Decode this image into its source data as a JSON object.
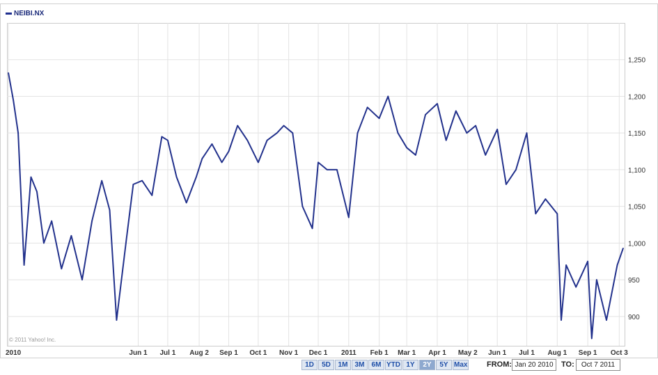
{
  "legend": {
    "symbol": "NEIBI.NX"
  },
  "copyright": "© 2011 Yahoo! Inc.",
  "controls": {
    "ranges": [
      "1D",
      "5D",
      "1M",
      "3M",
      "6M",
      "YTD",
      "1Y",
      "2Y",
      "5Y",
      "Max"
    ],
    "selected": "2Y",
    "from_label": "FROM:",
    "from_value": "Jan 20 2010",
    "to_label": "TO:",
    "to_value": "Oct 7 2011"
  },
  "colors": {
    "line": "#22318c",
    "grid": "#e3e3e3",
    "button": "#dfe7f2"
  },
  "chart_data": {
    "type": "line",
    "series": [
      {
        "name": "NEIBI.NX",
        "x": [
          "2010-01-20",
          "2010-01-25",
          "2010-01-30",
          "2010-02-05",
          "2010-02-12",
          "2010-02-18",
          "2010-02-25",
          "2010-03-05",
          "2010-03-15",
          "2010-03-25",
          "2010-04-05",
          "2010-04-15",
          "2010-04-25",
          "2010-05-03",
          "2010-05-10",
          "2010-05-20",
          "2010-05-27",
          "2010-06-05",
          "2010-06-15",
          "2010-06-25",
          "2010-07-01",
          "2010-07-10",
          "2010-07-20",
          "2010-07-30",
          "2010-08-05",
          "2010-08-15",
          "2010-08-25",
          "2010-09-01",
          "2010-09-10",
          "2010-09-20",
          "2010-10-01",
          "2010-10-10",
          "2010-10-20",
          "2010-10-27",
          "2010-11-05",
          "2010-11-15",
          "2010-11-25",
          "2010-12-01",
          "2010-12-10",
          "2010-12-20",
          "2011-01-01",
          "2011-01-10",
          "2011-01-20",
          "2011-02-01",
          "2011-02-10",
          "2011-02-20",
          "2011-03-01",
          "2011-03-10",
          "2011-03-20",
          "2011-04-01",
          "2011-04-10",
          "2011-04-20",
          "2011-05-01",
          "2011-05-10",
          "2011-05-20",
          "2011-06-01",
          "2011-06-10",
          "2011-06-20",
          "2011-07-01",
          "2011-07-10",
          "2011-07-20",
          "2011-08-01",
          "2011-08-05",
          "2011-08-10",
          "2011-08-20",
          "2011-09-01",
          "2011-09-05",
          "2011-09-10",
          "2011-09-20",
          "2011-10-01",
          "2011-10-07"
        ],
        "values": [
          1232,
          1195,
          1150,
          970,
          1090,
          1070,
          1000,
          1030,
          965,
          1010,
          950,
          1030,
          1085,
          1045,
          895,
          1005,
          1080,
          1085,
          1065,
          1145,
          1140,
          1090,
          1055,
          1090,
          1115,
          1135,
          1110,
          1125,
          1160,
          1140,
          1110,
          1140,
          1150,
          1160,
          1150,
          1050,
          1020,
          1110,
          1100,
          1100,
          1035,
          1150,
          1185,
          1170,
          1200,
          1150,
          1130,
          1120,
          1175,
          1190,
          1140,
          1180,
          1150,
          1160,
          1120,
          1155,
          1080,
          1100,
          1150,
          1040,
          1060,
          1040,
          895,
          970,
          940,
          975,
          870,
          950,
          895,
          970,
          993
        ]
      }
    ],
    "ylim": [
      860,
      1300
    ],
    "yticks": [
      900,
      950,
      1000,
      1050,
      1100,
      1150,
      1200,
      1250
    ],
    "ytick_labels": [
      "900",
      "950",
      "1,000",
      "1,050",
      "1,100",
      "1,150",
      "1,200",
      "1,250"
    ],
    "xticks": [
      {
        "date": "2010-01-20",
        "label": "2010"
      },
      {
        "date": "2010-06-01",
        "label": "Jun 1"
      },
      {
        "date": "2010-07-01",
        "label": "Jul 1"
      },
      {
        "date": "2010-08-02",
        "label": "Aug 2"
      },
      {
        "date": "2010-09-01",
        "label": "Sep 1"
      },
      {
        "date": "2010-10-01",
        "label": "Oct 1"
      },
      {
        "date": "2010-11-01",
        "label": "Nov 1"
      },
      {
        "date": "2010-12-01",
        "label": "Dec 1"
      },
      {
        "date": "2011-01-01",
        "label": "2011"
      },
      {
        "date": "2011-02-01",
        "label": "Feb 1"
      },
      {
        "date": "2011-03-01",
        "label": "Mar 1"
      },
      {
        "date": "2011-04-01",
        "label": "Apr 1"
      },
      {
        "date": "2011-05-02",
        "label": "May 2"
      },
      {
        "date": "2011-06-01",
        "label": "Jun 1"
      },
      {
        "date": "2011-07-01",
        "label": "Jul 1"
      },
      {
        "date": "2011-08-01",
        "label": "Aug 1"
      },
      {
        "date": "2011-09-01",
        "label": "Sep 1"
      },
      {
        "date": "2011-10-03",
        "label": "Oct 3"
      }
    ],
    "grid": true,
    "legend_position": "top-left"
  }
}
